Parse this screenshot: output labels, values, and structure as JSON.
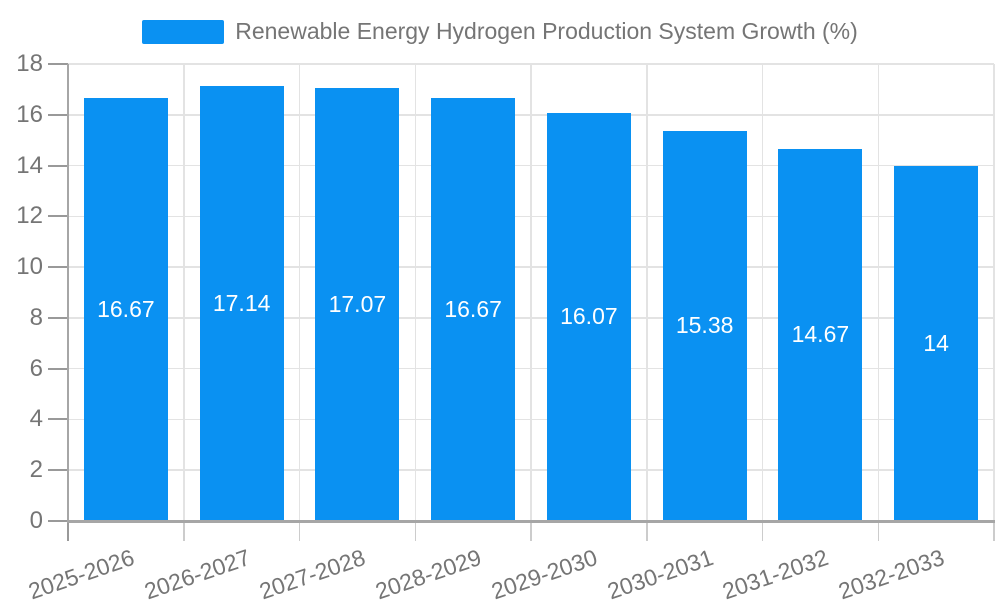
{
  "chart_data": {
    "type": "bar",
    "title": "Renewable Energy Hydrogen Production System Growth (%)",
    "categories": [
      "2025-2026",
      "2026-2027",
      "2027-2028",
      "2028-2029",
      "2029-2030",
      "2030-2031",
      "2031-2032",
      "2032-2033"
    ],
    "values": [
      16.67,
      17.14,
      17.07,
      16.67,
      16.07,
      15.38,
      14.67,
      14
    ],
    "value_labels": [
      "16.67",
      "17.14",
      "17.07",
      "16.67",
      "16.07",
      "15.38",
      "14.67",
      "14"
    ],
    "xlabel": "",
    "ylabel": "",
    "ylim": [
      0,
      18
    ],
    "ytick_step": 2,
    "ytick_labels": [
      "0",
      "2",
      "4",
      "6",
      "8",
      "10",
      "12",
      "14",
      "16",
      "18"
    ],
    "grid": true,
    "legend_position": "top-center",
    "bar_color": "#0a91f2",
    "bar_value_label_color": "#ffffff",
    "axis_text_color": "#757575",
    "gridline_color": "#e3e3e3",
    "axis_line_color": "#a6a6a6"
  }
}
